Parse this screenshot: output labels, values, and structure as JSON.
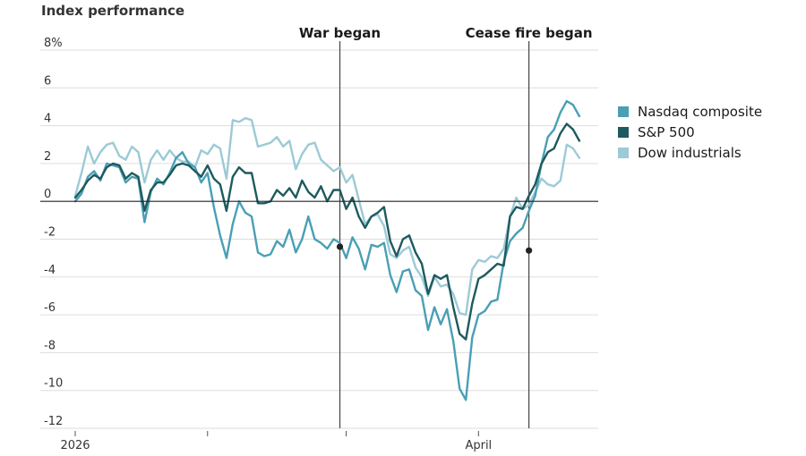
{
  "chart_data": {
    "type": "line",
    "title": "Index performance",
    "y_unit_suffix": "%",
    "ylim": [
      -12,
      8
    ],
    "y_ticks": [
      8,
      6,
      4,
      2,
      0,
      -2,
      -4,
      -6,
      -8,
      -10,
      -12
    ],
    "y_tick_labels": [
      "8%",
      "6",
      "4",
      "2",
      "0",
      "-2",
      "-4",
      "-6",
      "-8",
      "-10",
      "-12"
    ],
    "xlim": [
      0,
      83
    ],
    "x_ticks": [
      0,
      21,
      43,
      64
    ],
    "x_tick_labels": [
      "2026",
      "",
      "",
      "April"
    ],
    "colors": {
      "nasdaq": "#4a9fb5",
      "sp500": "#1e5a5e",
      "dow": "#9ccad6",
      "axis": "#222222",
      "grid": "#dddddd"
    },
    "events": [
      {
        "label": "War began",
        "x": 42,
        "marker_y": -2.4
      },
      {
        "label": "Cease fire began",
        "x": 72,
        "marker_y": -2.6
      }
    ],
    "series": [
      {
        "key": "nasdaq",
        "name": "Nasdaq composite",
        "values": [
          0,
          0.4,
          1.3,
          1.6,
          1.1,
          2.0,
          1.9,
          1.8,
          1.0,
          1.3,
          1.2,
          -1.1,
          0.5,
          1.2,
          0.9,
          1.5,
          2.3,
          2.6,
          2.0,
          1.8,
          1.0,
          1.5,
          -0.3,
          -1.8,
          -3.0,
          -1.2,
          0,
          -0.6,
          -0.8,
          -2.7,
          -2.9,
          -2.8,
          -2.1,
          -2.4,
          -1.5,
          -2.7,
          -2.0,
          -0.8,
          -2.0,
          -2.2,
          -2.5,
          -2.0,
          -2.2,
          -3.0,
          -1.9,
          -2.5,
          -3.6,
          -2.3,
          -2.4,
          -2.2,
          -3.9,
          -4.8,
          -3.7,
          -3.6,
          -4.7,
          -5.0,
          -6.8,
          -5.6,
          -6.5,
          -5.7,
          -7.4,
          -9.9,
          -10.5,
          -7.2,
          -6.0,
          -5.8,
          -5.3,
          -5.2,
          -3.2,
          -2.1,
          -1.7,
          -1.4,
          -0.5,
          0.3,
          2.0,
          3.4,
          3.8,
          4.7,
          5.3,
          5.1,
          4.5
        ]
      },
      {
        "key": "sp500",
        "name": "S&P 500",
        "values": [
          0.2,
          0.6,
          1.1,
          1.4,
          1.2,
          1.8,
          2.0,
          1.9,
          1.2,
          1.5,
          1.3,
          -0.5,
          0.6,
          1.0,
          1.0,
          1.4,
          1.9,
          2.0,
          1.9,
          1.6,
          1.3,
          1.9,
          1.2,
          0.9,
          -0.5,
          1.3,
          1.8,
          1.5,
          1.5,
          -0.1,
          -0.1,
          0,
          0.6,
          0.3,
          0.7,
          0.2,
          1.1,
          0.5,
          0.2,
          0.8,
          0,
          0.6,
          0.6,
          -0.4,
          0.2,
          -0.8,
          -1.4,
          -0.8,
          -0.6,
          -0.3,
          -2.1,
          -2.9,
          -2.0,
          -1.8,
          -2.7,
          -3.3,
          -4.9,
          -3.9,
          -4.1,
          -3.9,
          -5.6,
          -7.0,
          -7.3,
          -5.4,
          -4.1,
          -3.9,
          -3.6,
          -3.3,
          -3.4,
          -0.8,
          -0.3,
          -0.4,
          0.3,
          0.9,
          2.0,
          2.6,
          2.8,
          3.6,
          4.1,
          3.8,
          3.2
        ]
      },
      {
        "key": "dow",
        "name": "Dow industrials",
        "values": [
          0.3,
          1.5,
          2.9,
          2.0,
          2.6,
          3.0,
          3.1,
          2.4,
          2.2,
          2.9,
          2.6,
          1.0,
          2.2,
          2.7,
          2.2,
          2.7,
          2.3,
          2.1,
          2.1,
          1.8,
          2.7,
          2.5,
          3.0,
          2.8,
          1.2,
          4.3,
          4.2,
          4.4,
          4.3,
          2.9,
          3.0,
          3.1,
          3.4,
          2.9,
          3.2,
          1.7,
          2.5,
          3.0,
          3.1,
          2.2,
          1.9,
          1.6,
          1.8,
          1.0,
          1.4,
          0.1,
          -1.2,
          -0.8,
          -0.7,
          -1.3,
          -2.8,
          -3.0,
          -2.6,
          -2.4,
          -3.5,
          -4.0,
          -5.0,
          -4.0,
          -4.5,
          -4.4,
          -4.9,
          -5.9,
          -6.0,
          -3.6,
          -3.1,
          -3.2,
          -2.9,
          -3.0,
          -2.5,
          -0.8,
          0.2,
          -0.4,
          -0.2,
          0.5,
          1.2,
          0.9,
          0.8,
          1.1,
          3.0,
          2.8,
          2.3
        ]
      }
    ]
  }
}
